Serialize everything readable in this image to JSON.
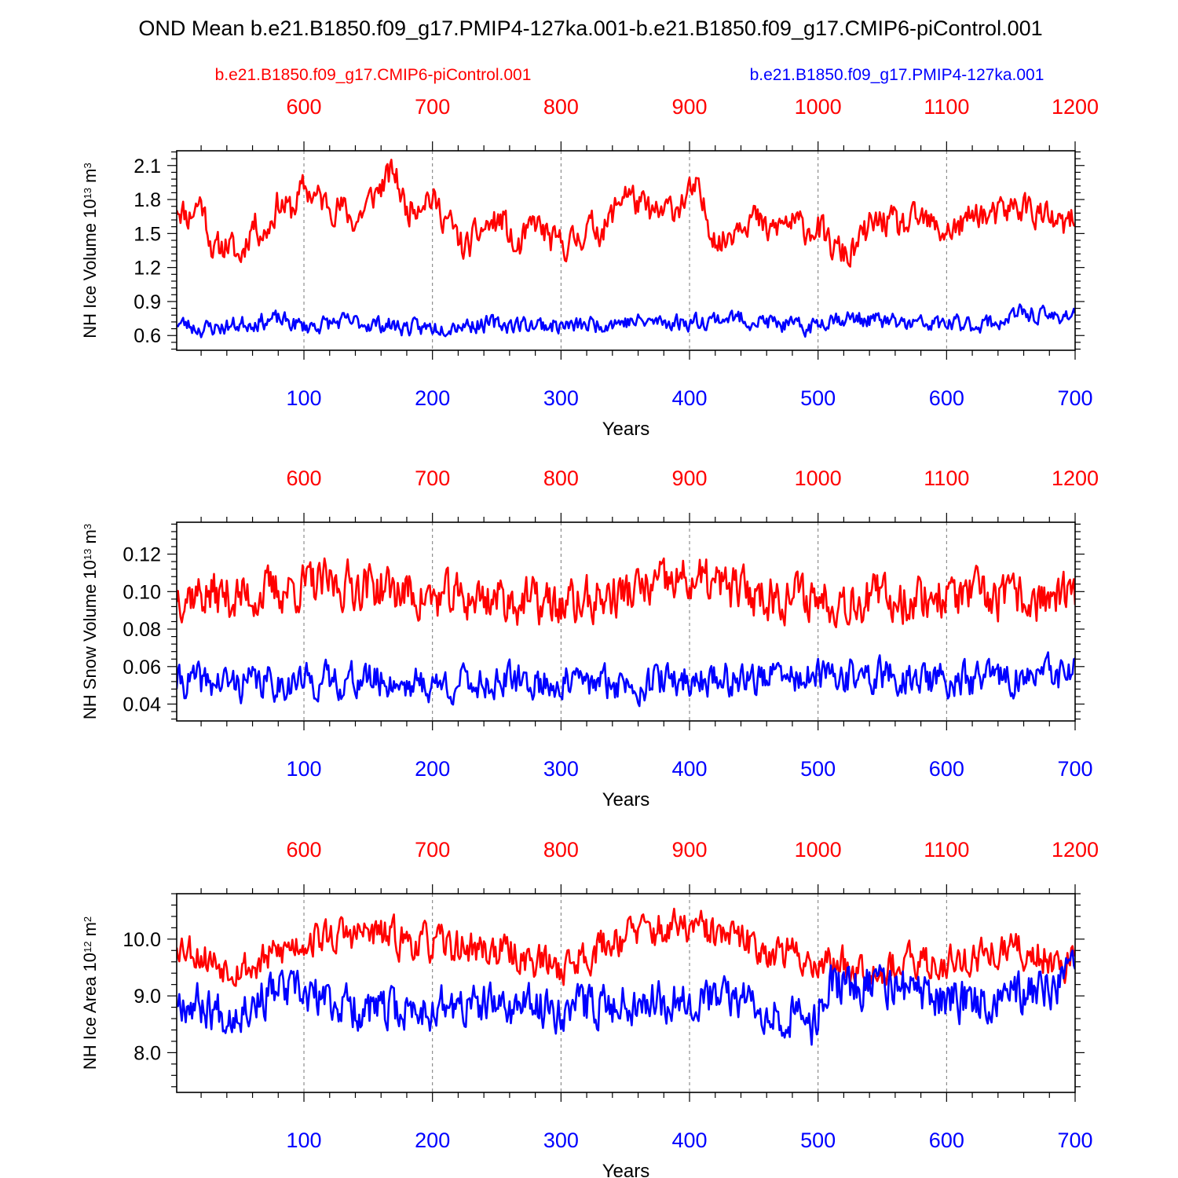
{
  "title": "OND Mean b.e21.B1850.f09_g17.PMIP4-127ka.001-b.e21.B1850.f09_g17.CMIP6-piControl.001",
  "legend": {
    "red_label": "b.e21.B1850.f09_g17.CMIP6-piControl.001",
    "blue_label": "b.e21.B1850.f09_g17.PMIP4-127ka.001"
  },
  "colors": {
    "red": "#ff0000",
    "blue": "#0000ff",
    "grid": "#777777"
  },
  "chart_data": [
    {
      "type": "line",
      "ylabel": "NH Ice Volume 10",
      "ylabel_exp": "13",
      "ylabel_unit": " m",
      "ylabel_unit_exp": "3",
      "xlabel": "Years",
      "x_bottom_range": [
        1,
        700
      ],
      "x_top_range": [
        502,
        1201
      ],
      "x_bottom_ticks": [
        "100",
        "200",
        "300",
        "400",
        "500",
        "600",
        "700"
      ],
      "x_top_ticks": [
        "600",
        "700",
        "800",
        "900",
        "1000",
        "1100",
        "1200"
      ],
      "ylim": [
        0.47,
        2.23
      ],
      "y_ticks": [
        0.6,
        0.9,
        1.2,
        1.5,
        1.8,
        2.1
      ],
      "y_tick_labels": [
        "0.6",
        "0.9",
        "1.2",
        "1.5",
        "1.8",
        "2.1"
      ],
      "y_minor_step": 0.06,
      "series": [
        {
          "name": "b.e21.B1850.f09_g17.CMIP6-piControl.001",
          "color": "red",
          "anchors": [
            [
              0,
              1.78
            ],
            [
              10,
              1.65
            ],
            [
              20,
              1.8
            ],
            [
              30,
              1.33
            ],
            [
              40,
              1.42
            ],
            [
              50,
              1.28
            ],
            [
              60,
              1.6
            ],
            [
              70,
              1.5
            ],
            [
              80,
              1.78
            ],
            [
              90,
              1.7
            ],
            [
              100,
              1.9
            ],
            [
              115,
              1.78
            ],
            [
              130,
              1.72
            ],
            [
              140,
              1.6
            ],
            [
              155,
              1.85
            ],
            [
              170,
              2.05
            ],
            [
              180,
              1.7
            ],
            [
              195,
              1.85
            ],
            [
              210,
              1.65
            ],
            [
              225,
              1.35
            ],
            [
              240,
              1.55
            ],
            [
              255,
              1.62
            ],
            [
              265,
              1.32
            ],
            [
              280,
              1.6
            ],
            [
              295,
              1.4
            ],
            [
              310,
              1.42
            ],
            [
              320,
              1.55
            ],
            [
              335,
              1.55
            ],
            [
              350,
              1.9
            ],
            [
              360,
              1.75
            ],
            [
              375,
              1.65
            ],
            [
              390,
              1.75
            ],
            [
              405,
              1.88
            ],
            [
              415,
              1.6
            ],
            [
              425,
              1.4
            ],
            [
              440,
              1.65
            ],
            [
              450,
              1.65
            ],
            [
              460,
              1.5
            ],
            [
              475,
              1.6
            ],
            [
              490,
              1.55
            ],
            [
              500,
              1.55
            ],
            [
              510,
              1.38
            ],
            [
              525,
              1.3
            ],
            [
              540,
              1.55
            ],
            [
              550,
              1.62
            ],
            [
              565,
              1.55
            ],
            [
              580,
              1.62
            ],
            [
              595,
              1.52
            ],
            [
              610,
              1.55
            ],
            [
              625,
              1.7
            ],
            [
              635,
              1.62
            ],
            [
              650,
              1.72
            ],
            [
              660,
              1.75
            ],
            [
              675,
              1.65
            ],
            [
              690,
              1.55
            ],
            [
              700,
              1.62
            ]
          ],
          "amplitude": 0.12,
          "seed": 11
        },
        {
          "name": "b.e21.B1850.f09_g17.PMIP4-127ka.001",
          "color": "blue",
          "anchors": [
            [
              0,
              0.72
            ],
            [
              20,
              0.66
            ],
            [
              40,
              0.68
            ],
            [
              60,
              0.72
            ],
            [
              80,
              0.74
            ],
            [
              100,
              0.68
            ],
            [
              130,
              0.72
            ],
            [
              160,
              0.7
            ],
            [
              190,
              0.66
            ],
            [
              220,
              0.7
            ],
            [
              250,
              0.7
            ],
            [
              280,
              0.7
            ],
            [
              310,
              0.68
            ],
            [
              340,
              0.72
            ],
            [
              370,
              0.72
            ],
            [
              400,
              0.72
            ],
            [
              430,
              0.76
            ],
            [
              460,
              0.72
            ],
            [
              490,
              0.66
            ],
            [
              510,
              0.76
            ],
            [
              540,
              0.74
            ],
            [
              570,
              0.7
            ],
            [
              600,
              0.7
            ],
            [
              620,
              0.7
            ],
            [
              640,
              0.72
            ],
            [
              660,
              0.8
            ],
            [
              680,
              0.76
            ],
            [
              700,
              0.8
            ]
          ],
          "amplitude": 0.065,
          "seed": 23
        }
      ]
    },
    {
      "type": "line",
      "ylabel": "NH Snow Volume 10",
      "ylabel_exp": "13",
      "ylabel_unit": " m",
      "ylabel_unit_exp": "3",
      "xlabel": "Years",
      "x_bottom_range": [
        1,
        700
      ],
      "x_top_range": [
        502,
        1201
      ],
      "x_bottom_ticks": [
        "100",
        "200",
        "300",
        "400",
        "500",
        "600",
        "700"
      ],
      "x_top_ticks": [
        "600",
        "700",
        "800",
        "900",
        "1000",
        "1100",
        "1200"
      ],
      "ylim": [
        0.031,
        0.137
      ],
      "y_ticks": [
        0.04,
        0.06,
        0.08,
        0.1,
        0.12
      ],
      "y_tick_labels": [
        "0.04",
        "0.06",
        "0.08",
        "0.10",
        "0.12"
      ],
      "y_minor_step": 0.004,
      "series": [
        {
          "name": "b.e21.B1850.f09_g17.CMIP6-piControl.001",
          "color": "red",
          "anchors": [
            [
              0,
              0.1
            ],
            [
              50,
              0.097
            ],
            [
              100,
              0.103
            ],
            [
              150,
              0.104
            ],
            [
              200,
              0.096
            ],
            [
              250,
              0.097
            ],
            [
              300,
              0.092
            ],
            [
              350,
              0.099
            ],
            [
              400,
              0.106
            ],
            [
              450,
              0.099
            ],
            [
              500,
              0.097
            ],
            [
              550,
              0.096
            ],
            [
              600,
              0.098
            ],
            [
              650,
              0.096
            ],
            [
              700,
              0.096
            ]
          ],
          "amplitude": 0.011,
          "seed": 37
        },
        {
          "name": "b.e21.B1850.f09_g17.PMIP4-127ka.001",
          "color": "blue",
          "anchors": [
            [
              0,
              0.052
            ],
            [
              50,
              0.051
            ],
            [
              100,
              0.052
            ],
            [
              150,
              0.053
            ],
            [
              200,
              0.05
            ],
            [
              250,
              0.052
            ],
            [
              300,
              0.051
            ],
            [
              350,
              0.051
            ],
            [
              400,
              0.053
            ],
            [
              450,
              0.054
            ],
            [
              500,
              0.054
            ],
            [
              550,
              0.055
            ],
            [
              600,
              0.052
            ],
            [
              650,
              0.054
            ],
            [
              700,
              0.056
            ]
          ],
          "amplitude": 0.008,
          "seed": 41
        }
      ]
    },
    {
      "type": "line",
      "ylabel": "NH Ice Area 10",
      "ylabel_exp": "12",
      "ylabel_unit": " m",
      "ylabel_unit_exp": "2",
      "xlabel": "Years",
      "x_bottom_range": [
        1,
        700
      ],
      "x_top_range": [
        502,
        1201
      ],
      "x_bottom_ticks": [
        "100",
        "200",
        "300",
        "400",
        "500",
        "600",
        "700"
      ],
      "x_top_ticks": [
        "600",
        "700",
        "800",
        "900",
        "1000",
        "1100",
        "1200"
      ],
      "ylim": [
        7.3,
        10.8
      ],
      "y_ticks": [
        8.0,
        9.0,
        10.0
      ],
      "y_tick_labels": [
        "8.0",
        "9.0",
        "10.0"
      ],
      "y_minor_step": 0.2,
      "series": [
        {
          "name": "b.e21.B1850.f09_g17.CMIP6-piControl.001",
          "color": "red",
          "anchors": [
            [
              0,
              10.0
            ],
            [
              30,
              9.6
            ],
            [
              60,
              9.5
            ],
            [
              100,
              10.0
            ],
            [
              150,
              10.1
            ],
            [
              200,
              9.9
            ],
            [
              250,
              9.8
            ],
            [
              300,
              9.5
            ],
            [
              350,
              10.1
            ],
            [
              400,
              10.2
            ],
            [
              450,
              9.9
            ],
            [
              500,
              9.6
            ],
            [
              550,
              9.5
            ],
            [
              600,
              9.6
            ],
            [
              650,
              9.8
            ],
            [
              700,
              9.6
            ]
          ],
          "amplitude": 0.28,
          "seed": 53
        },
        {
          "name": "b.e21.B1850.f09_g17.PMIP4-127ka.001",
          "color": "blue",
          "anchors": [
            [
              0,
              9.0
            ],
            [
              40,
              8.7
            ],
            [
              80,
              9.1
            ],
            [
              120,
              8.9
            ],
            [
              160,
              8.7
            ],
            [
              200,
              8.8
            ],
            [
              250,
              8.8
            ],
            [
              300,
              8.8
            ],
            [
              350,
              8.9
            ],
            [
              400,
              9.0
            ],
            [
              450,
              8.9
            ],
            [
              495,
              8.5
            ],
            [
              510,
              9.2
            ],
            [
              550,
              9.2
            ],
            [
              600,
              8.9
            ],
            [
              650,
              9.0
            ],
            [
              700,
              9.3
            ]
          ],
          "amplitude": 0.33,
          "seed": 67
        }
      ]
    }
  ]
}
